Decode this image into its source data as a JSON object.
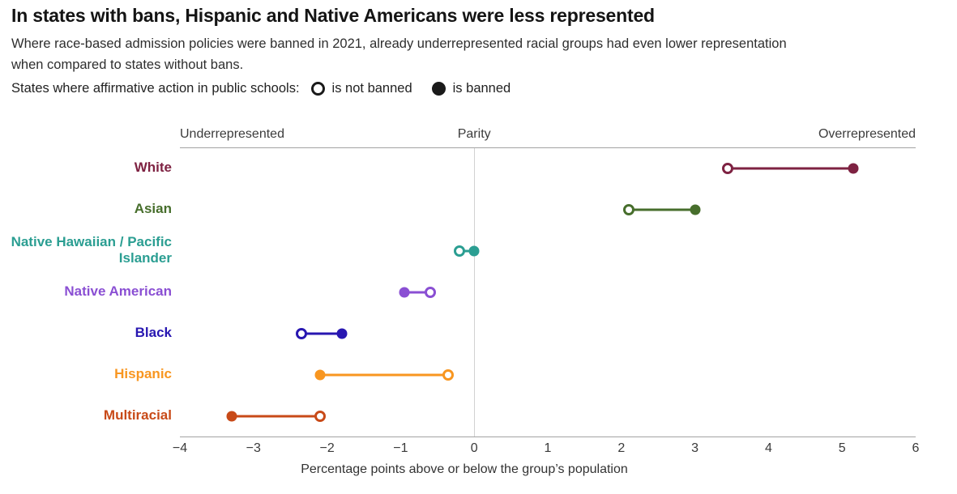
{
  "header": {
    "title": "In states with bans, Hispanic and Native Americans were less represented",
    "subtitle": "Where race-based admission policies were banned in 2021, already underrepresented racial groups had even lower representation when compared to states without bans.",
    "legend": {
      "prefix": "States where affirmative action in public schools:",
      "not_banned_label": "is not banned",
      "banned_label": "is banned",
      "circle_color": "#1a1a1a"
    }
  },
  "chart_data": {
    "type": "dumbbell",
    "title": "In states with bans, Hispanic and Native Americans were less represented",
    "x_axis": {
      "min": -4,
      "max": 6,
      "ticks": [
        -4,
        -3,
        -2,
        -1,
        0,
        1,
        2,
        3,
        4,
        5,
        6
      ],
      "label": "Percentage points above or below the group’s population"
    },
    "region_labels": {
      "left": "Underrepresented",
      "center": "Parity",
      "right": "Overrepresented"
    },
    "series_labels": {
      "open_marker": "is not banned",
      "filled_marker": "is banned"
    },
    "parity_value": 0,
    "rows": [
      {
        "group": "White",
        "color": "#7e2242",
        "not_banned": 3.45,
        "banned": 5.15
      },
      {
        "group": "Asian",
        "color": "#476e2c",
        "not_banned": 2.1,
        "banned": 3.0
      },
      {
        "group": "Native Hawaiian / Pacific Islander",
        "color": "#2b9e92",
        "not_banned": -0.2,
        "banned": 0.0
      },
      {
        "group": "Native American",
        "color": "#8a4fd3",
        "not_banned": -0.6,
        "banned": -0.95
      },
      {
        "group": "Black",
        "color": "#2817b1",
        "not_banned": -2.35,
        "banned": -1.8
      },
      {
        "group": "Hispanic",
        "color": "#f89620",
        "not_banned": -0.35,
        "banned": -2.1
      },
      {
        "group": "Multiracial",
        "color": "#c84a18",
        "not_banned": -2.1,
        "banned": -3.3
      }
    ],
    "layout": {
      "grid": "off",
      "legend_position": "top-left",
      "orientation": "horizontal"
    }
  }
}
